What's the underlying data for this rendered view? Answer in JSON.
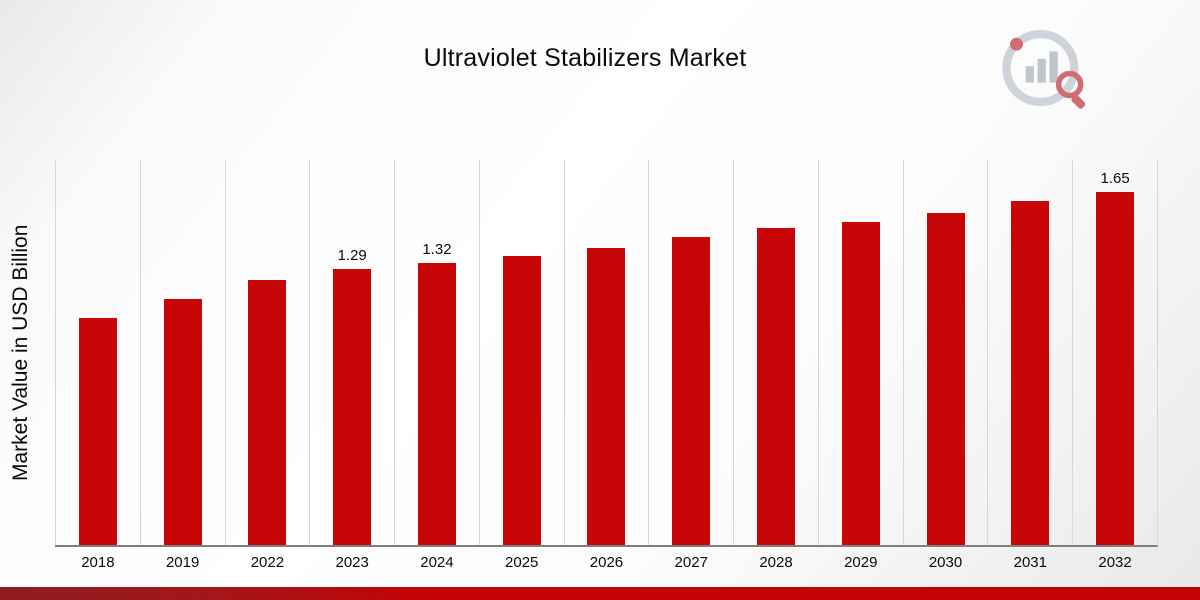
{
  "title": "Ultraviolet Stabilizers Market",
  "ylabel": "Market Value in USD Billion",
  "colors": {
    "bar": "#c80507",
    "footer_dark_red": "#8e1d20",
    "footer_red": "#c40304",
    "gridline": "#d7d7d7",
    "axis": "#7f7f7f"
  },
  "logo_name": "market-research-logo",
  "chart_data": {
    "type": "bar",
    "title": "Ultraviolet Stabilizers Market",
    "xlabel": "",
    "ylabel": "Market Value in USD Billion",
    "ylim": [
      0,
      1.8
    ],
    "grid": "vertical",
    "legend": "none",
    "bar_color": "#c80507",
    "categories": [
      "2018",
      "2019",
      "2022",
      "2023",
      "2024",
      "2025",
      "2026",
      "2027",
      "2028",
      "2029",
      "2030",
      "2031",
      "2032"
    ],
    "values": [
      1.06,
      1.15,
      1.24,
      1.29,
      1.32,
      1.35,
      1.39,
      1.44,
      1.48,
      1.51,
      1.55,
      1.61,
      1.65
    ],
    "value_labels": {
      "2023": "1.29",
      "2024": "1.32",
      "2032": "1.65"
    }
  }
}
